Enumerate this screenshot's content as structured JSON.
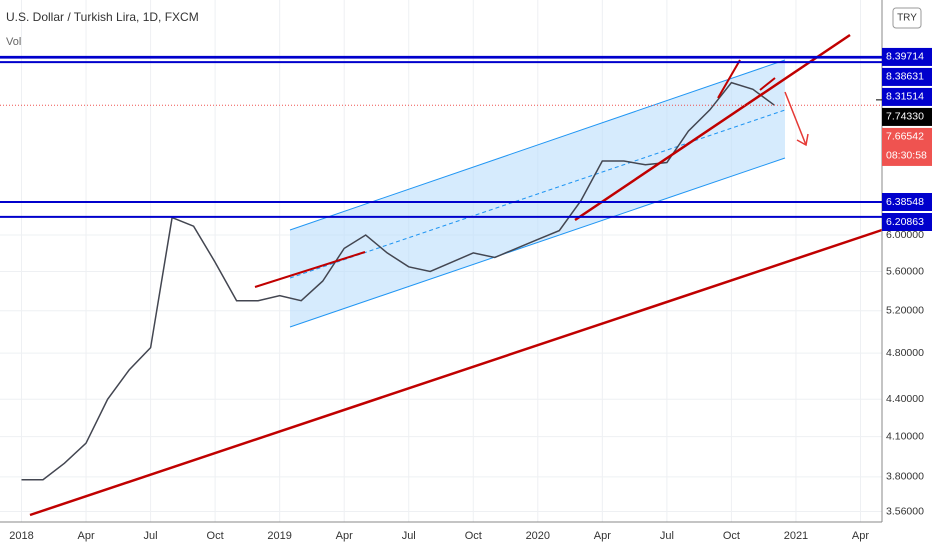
{
  "chart_data": {
    "type": "line",
    "title": "U.S. Dollar / Turkish Lira, 1D, FXCM",
    "volume_label": "Vol",
    "currency_button": "TRY",
    "log_scale": true,
    "color": "#434651",
    "level_color": "#0000cc",
    "x": [
      "2018-01",
      "2018-02",
      "2018-03",
      "2018-04",
      "2018-05",
      "2018-06",
      "2018-07",
      "2018-08",
      "2018-09",
      "2018-10",
      "2018-11",
      "2018-12",
      "2019-01",
      "2019-02",
      "2019-03",
      "2019-04",
      "2019-05",
      "2019-06",
      "2019-07",
      "2019-08",
      "2019-09",
      "2019-10",
      "2019-11",
      "2019-12",
      "2020-01",
      "2020-02",
      "2020-03",
      "2020-04",
      "2020-05",
      "2020-06",
      "2020-07",
      "2020-08",
      "2020-09",
      "2020-10",
      "2020-11",
      "2020-12"
    ],
    "values": [
      3.78,
      3.78,
      3.9,
      4.05,
      4.4,
      4.65,
      4.85,
      6.2,
      6.1,
      5.7,
      5.3,
      5.3,
      5.35,
      5.3,
      5.5,
      5.85,
      6.0,
      5.8,
      5.65,
      5.6,
      5.7,
      5.8,
      5.75,
      5.85,
      5.95,
      6.05,
      6.4,
      6.9,
      6.9,
      6.85,
      6.88,
      7.3,
      7.6,
      8.0,
      7.9,
      7.66542
    ],
    "xlim": [
      "2017-12",
      "2021-05"
    ],
    "xticks": [
      {
        "value": "2018-01",
        "label": "2018"
      },
      {
        "value": "2018-04",
        "label": "Apr"
      },
      {
        "value": "2018-07",
        "label": "Jul"
      },
      {
        "value": "2018-10",
        "label": "Oct"
      },
      {
        "value": "2019-01",
        "label": "2019"
      },
      {
        "value": "2019-04",
        "label": "Apr"
      },
      {
        "value": "2019-07",
        "label": "Jul"
      },
      {
        "value": "2019-10",
        "label": "Oct"
      },
      {
        "value": "2020-01",
        "label": "2020"
      },
      {
        "value": "2020-04",
        "label": "Apr"
      },
      {
        "value": "2020-07",
        "label": "Jul"
      },
      {
        "value": "2020-10",
        "label": "Oct"
      },
      {
        "value": "2021-01",
        "label": "2021"
      },
      {
        "value": "2021-04",
        "label": "Apr"
      }
    ],
    "ylim": [
      3.49,
      9.35
    ],
    "yticks": [
      {
        "value": 3.56,
        "label": "3.56000"
      },
      {
        "value": 3.8,
        "label": "3.80000"
      },
      {
        "value": 4.1,
        "label": "4.10000"
      },
      {
        "value": 4.4,
        "label": "4.40000"
      },
      {
        "value": 4.8,
        "label": "4.80000"
      },
      {
        "value": 5.2,
        "label": "5.20000"
      },
      {
        "value": 5.6,
        "label": "5.60000"
      },
      {
        "value": 6.0,
        "label": "6.00000"
      }
    ],
    "levels": [
      8.39714,
      8.38631,
      8.31514,
      6.38548,
      6.20863
    ],
    "marker_price": {
      "value": 7.7433,
      "label": "7.74330"
    },
    "last_price": 7.66542,
    "countdown": "08:30:58"
  }
}
